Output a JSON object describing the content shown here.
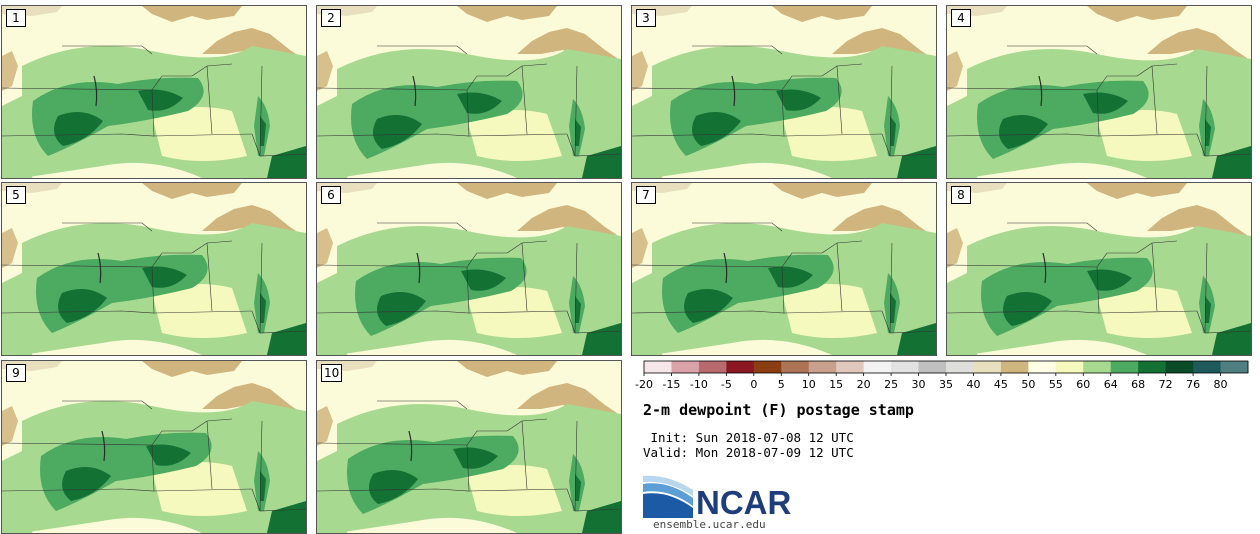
{
  "panels": [
    "1",
    "2",
    "3",
    "4",
    "5",
    "6",
    "7",
    "8",
    "9",
    "10"
  ],
  "colorbar": {
    "ticks": [
      "-20",
      "-15",
      "-10",
      "-5",
      "0",
      "5",
      "10",
      "15",
      "20",
      "25",
      "30",
      "35",
      "40",
      "45",
      "50",
      "55",
      "60",
      "64",
      "68",
      "72",
      "76",
      "80"
    ],
    "colors": [
      "#f6e6ea",
      "#d9a3a9",
      "#b96a6e",
      "#8a1722",
      "#8b3e12",
      "#ad7556",
      "#c99f8d",
      "#e0c8bd",
      "#f2f2f2",
      "#e2e2e2",
      "#bfbfbf",
      "#dededa",
      "#e7dfbe",
      "#d1b57e",
      "#fefee6",
      "#f6f9bd",
      "#a7da90",
      "#4daa61",
      "#137134",
      "#0b4a26",
      "#1e5a5c",
      "#4f7f80"
    ]
  },
  "title": "2-m dewpoint (F) postage stamp",
  "init_text": " Init: Sun 2018-07-08 12 UTC",
  "valid_text": "Valid: Mon 2018-07-09 12 UTC",
  "logo_text": "NCAR",
  "logo_url": "ensemble.ucar.edu"
}
